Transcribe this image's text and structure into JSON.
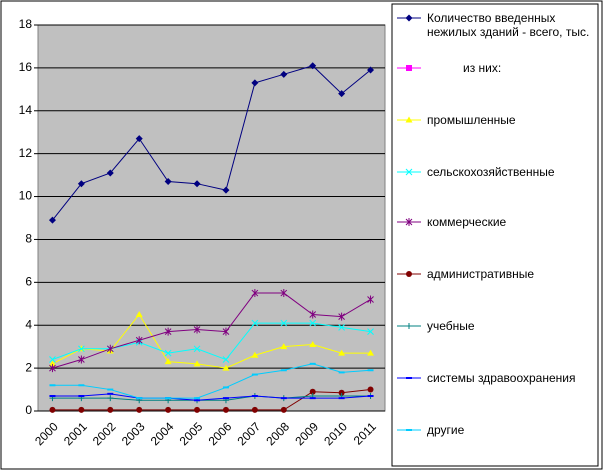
{
  "chart_data": {
    "type": "line",
    "categories": [
      "2000",
      "2001",
      "2002",
      "2003",
      "2004",
      "2005",
      "2006",
      "2007",
      "2008",
      "2009",
      "2010",
      "2011"
    ],
    "ylim": [
      0,
      18
    ],
    "yticks": [
      0,
      2,
      4,
      6,
      8,
      10,
      12,
      14,
      16,
      18
    ],
    "grid": true,
    "series": [
      {
        "name": "Количество введенных нежилых зданий - всего, тыс.",
        "color": "#000080",
        "marker": "diamond",
        "values": [
          8.9,
          10.6,
          11.1,
          12.7,
          10.7,
          10.6,
          10.3,
          15.3,
          15.7,
          16.1,
          14.8,
          15.9
        ]
      },
      {
        "name": "из них:",
        "color": "#ff00ff",
        "marker": "square",
        "values": [
          null,
          null,
          null,
          null,
          null,
          null,
          null,
          null,
          null,
          null,
          null,
          null
        ]
      },
      {
        "name": "промышленные",
        "color": "#ffff00",
        "marker": "triangle",
        "values": [
          2.2,
          2.9,
          2.8,
          4.5,
          2.3,
          2.2,
          2.0,
          2.6,
          3.0,
          3.1,
          2.7,
          2.7
        ]
      },
      {
        "name": "сельскохозяйственные",
        "color": "#00ffff",
        "marker": "x",
        "values": [
          2.4,
          2.9,
          2.9,
          3.2,
          2.7,
          2.9,
          2.4,
          4.1,
          4.1,
          4.1,
          3.9,
          3.7
        ]
      },
      {
        "name": "коммерческие",
        "color": "#800080",
        "marker": "star",
        "values": [
          2.0,
          2.4,
          2.9,
          3.3,
          3.7,
          3.8,
          3.7,
          5.5,
          5.5,
          4.5,
          4.4,
          5.2
        ]
      },
      {
        "name": "административные",
        "color": "#800000",
        "marker": "circle",
        "values": [
          0.05,
          0.05,
          0.05,
          0.05,
          0.05,
          0.05,
          0.05,
          0.05,
          0.05,
          0.9,
          0.85,
          1.0
        ]
      },
      {
        "name": "учебные",
        "color": "#008080",
        "marker": "plus",
        "values": [
          0.6,
          0.6,
          0.6,
          0.5,
          0.5,
          0.5,
          0.5,
          0.7,
          0.6,
          0.7,
          0.7,
          0.7
        ]
      },
      {
        "name": "системы здравоохранения",
        "color": "#0000ff",
        "marker": "dash",
        "values": [
          0.7,
          0.7,
          0.8,
          0.6,
          0.6,
          0.5,
          0.6,
          0.7,
          0.6,
          0.6,
          0.6,
          0.7
        ]
      },
      {
        "name": "другие",
        "color": "#00ccff",
        "marker": "dash",
        "values": [
          1.2,
          1.2,
          1.0,
          0.6,
          0.6,
          0.6,
          1.1,
          1.7,
          1.9,
          2.2,
          1.8,
          1.9
        ]
      }
    ]
  }
}
